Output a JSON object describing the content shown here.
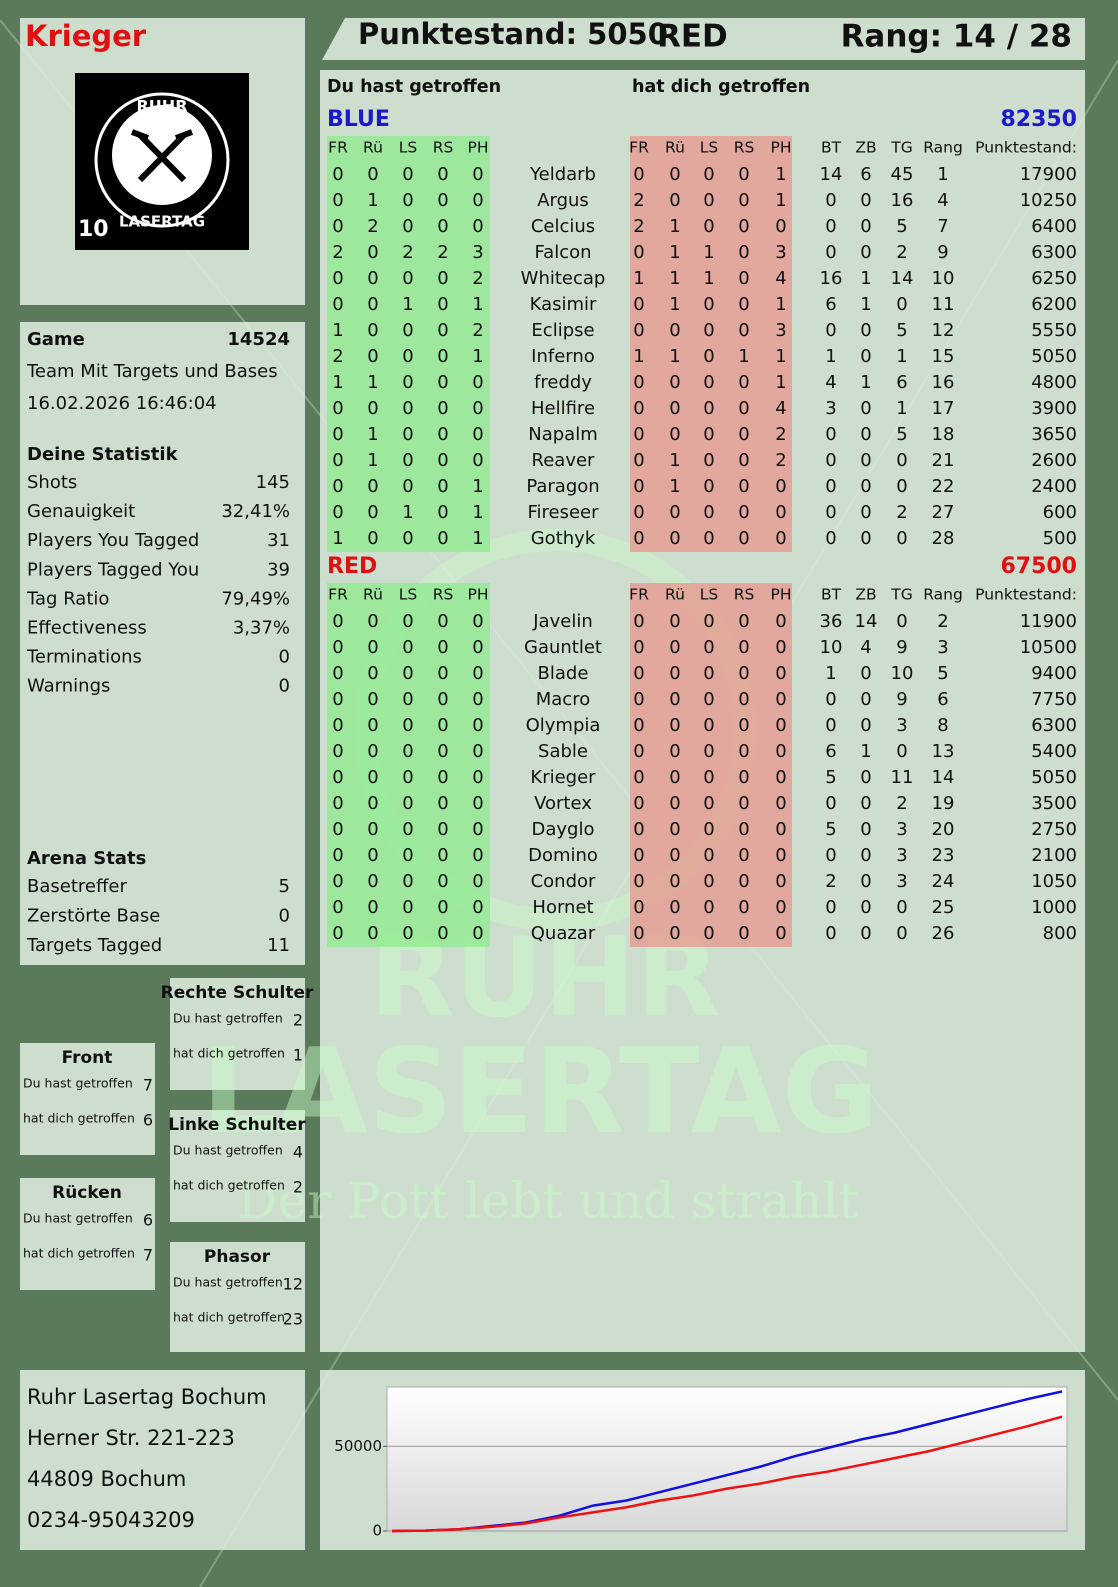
{
  "header": {
    "player": "Krieger",
    "score": "Punktestand: 5050",
    "team": "RED",
    "rank": "Rang: 14 / 28"
  },
  "logo": {
    "top": "RUHR",
    "bottom": "LASERTAG",
    "number": "10"
  },
  "game": {
    "label": "Game",
    "id": "14524",
    "mode": "Team Mit Targets und Bases",
    "date": "16.02.2026 16:46:04"
  },
  "statistics": {
    "title": "Deine Statistik",
    "rows": [
      [
        "Shots",
        "145"
      ],
      [
        "Genauigkeit",
        "32,41%"
      ],
      [
        "Players You Tagged",
        "31"
      ],
      [
        "Players Tagged You",
        "39"
      ],
      [
        "Tag Ratio",
        "79,49%"
      ],
      [
        "Effectiveness",
        "3,37%"
      ],
      [
        "Terminations",
        "0"
      ],
      [
        "Warnings",
        "0"
      ]
    ]
  },
  "arena": {
    "title": "Arena Stats",
    "rows": [
      [
        "Basetreffer",
        "5"
      ],
      [
        "Zerstörte Base",
        "0"
      ],
      [
        "Targets Tagged",
        "11"
      ]
    ]
  },
  "zones": [
    {
      "title": "Rechte Schulter",
      "rows": [
        [
          "Du hast getroffen",
          "2"
        ],
        [
          "hat dich getroffen",
          "1"
        ]
      ]
    },
    {
      "title": "Front",
      "rows": [
        [
          "Du hast getroffen",
          "7"
        ],
        [
          "hat dich getroffen",
          "6"
        ]
      ]
    },
    {
      "title": "Linke Schulter",
      "rows": [
        [
          "Du hast getroffen",
          "4"
        ],
        [
          "hat dich getroffen",
          "2"
        ]
      ]
    },
    {
      "title": "Rücken",
      "rows": [
        [
          "Du hast getroffen",
          "6"
        ],
        [
          "hat dich getroffen",
          "7"
        ]
      ]
    },
    {
      "title": "Phasor",
      "rows": [
        [
          "Du hast getroffen",
          "12"
        ],
        [
          "hat dich getroffen",
          "23"
        ]
      ]
    }
  ],
  "address": [
    "Ruhr Lasertag Bochum",
    "Herner Str. 221-223",
    "44809 Bochum",
    "0234-95043209"
  ],
  "watermark": {
    "line1": "RUHR",
    "line2": "LASERTAG",
    "slogan": "Der Pott lebt und strahlt"
  },
  "table": {
    "headings": [
      "Du hast getroffen",
      "hat dich getroffen"
    ],
    "teams": [
      {
        "name": "BLUE",
        "color": "#1a1acc",
        "total": "82350",
        "columns": [
          "FR",
          "Rü",
          "LS",
          "RS",
          "PH",
          "FR",
          "Rü",
          "LS",
          "RS",
          "PH",
          "BT",
          "ZB",
          "TG",
          "Rang",
          "Punktestand:"
        ],
        "rows": [
          {
            "name": "Yeldarb",
            "hit": [
              0,
              0,
              0,
              0,
              0
            ],
            "got": [
              0,
              0,
              0,
              0,
              1
            ],
            "stats": [
              14,
              6,
              45,
              1,
              17900
            ]
          },
          {
            "name": "Argus",
            "hit": [
              0,
              1,
              0,
              0,
              0
            ],
            "got": [
              2,
              0,
              0,
              0,
              1
            ],
            "stats": [
              0,
              0,
              16,
              4,
              10250
            ]
          },
          {
            "name": "Celcius",
            "hit": [
              0,
              2,
              0,
              0,
              0
            ],
            "got": [
              2,
              1,
              0,
              0,
              0
            ],
            "stats": [
              0,
              0,
              5,
              7,
              6400
            ]
          },
          {
            "name": "Falcon",
            "hit": [
              2,
              0,
              2,
              2,
              3
            ],
            "got": [
              0,
              1,
              1,
              0,
              3
            ],
            "stats": [
              0,
              0,
              2,
              9,
              6300
            ]
          },
          {
            "name": "Whitecap",
            "hit": [
              0,
              0,
              0,
              0,
              2
            ],
            "got": [
              1,
              1,
              1,
              0,
              4
            ],
            "stats": [
              16,
              1,
              14,
              10,
              6250
            ]
          },
          {
            "name": "Kasimir",
            "hit": [
              0,
              0,
              1,
              0,
              1
            ],
            "got": [
              0,
              1,
              0,
              0,
              1
            ],
            "stats": [
              6,
              1,
              0,
              11,
              6200
            ]
          },
          {
            "name": "Eclipse",
            "hit": [
              1,
              0,
              0,
              0,
              2
            ],
            "got": [
              0,
              0,
              0,
              0,
              3
            ],
            "stats": [
              0,
              0,
              5,
              12,
              5550
            ]
          },
          {
            "name": "Inferno",
            "hit": [
              2,
              0,
              0,
              0,
              1
            ],
            "got": [
              1,
              1,
              0,
              1,
              1
            ],
            "stats": [
              1,
              0,
              1,
              15,
              5050
            ]
          },
          {
            "name": "freddy",
            "hit": [
              1,
              1,
              0,
              0,
              0
            ],
            "got": [
              0,
              0,
              0,
              0,
              1
            ],
            "stats": [
              4,
              1,
              6,
              16,
              4800
            ]
          },
          {
            "name": "Hellfire",
            "hit": [
              0,
              0,
              0,
              0,
              0
            ],
            "got": [
              0,
              0,
              0,
              0,
              4
            ],
            "stats": [
              3,
              0,
              1,
              17,
              3900
            ]
          },
          {
            "name": "Napalm",
            "hit": [
              0,
              1,
              0,
              0,
              0
            ],
            "got": [
              0,
              0,
              0,
              0,
              2
            ],
            "stats": [
              0,
              0,
              5,
              18,
              3650
            ]
          },
          {
            "name": "Reaver",
            "hit": [
              0,
              1,
              0,
              0,
              0
            ],
            "got": [
              0,
              1,
              0,
              0,
              2
            ],
            "stats": [
              0,
              0,
              0,
              21,
              2600
            ]
          },
          {
            "name": "Paragon",
            "hit": [
              0,
              0,
              0,
              0,
              1
            ],
            "got": [
              0,
              1,
              0,
              0,
              0
            ],
            "stats": [
              0,
              0,
              0,
              22,
              2400
            ]
          },
          {
            "name": "Fireseer",
            "hit": [
              0,
              0,
              1,
              0,
              1
            ],
            "got": [
              0,
              0,
              0,
              0,
              0
            ],
            "stats": [
              0,
              0,
              2,
              27,
              600
            ]
          },
          {
            "name": "Gothyk",
            "hit": [
              1,
              0,
              0,
              0,
              1
            ],
            "got": [
              0,
              0,
              0,
              0,
              0
            ],
            "stats": [
              0,
              0,
              0,
              28,
              500
            ]
          }
        ]
      },
      {
        "name": "RED",
        "color": "#e01010",
        "total": "67500",
        "columns": [
          "FR",
          "Rü",
          "LS",
          "RS",
          "PH",
          "FR",
          "Rü",
          "LS",
          "RS",
          "PH",
          "BT",
          "ZB",
          "TG",
          "Rang",
          "Punktestand:"
        ],
        "rows": [
          {
            "name": "Javelin",
            "hit": [
              0,
              0,
              0,
              0,
              0
            ],
            "got": [
              0,
              0,
              0,
              0,
              0
            ],
            "stats": [
              36,
              14,
              0,
              2,
              11900
            ]
          },
          {
            "name": "Gauntlet",
            "hit": [
              0,
              0,
              0,
              0,
              0
            ],
            "got": [
              0,
              0,
              0,
              0,
              0
            ],
            "stats": [
              10,
              4,
              9,
              3,
              10500
            ]
          },
          {
            "name": "Blade",
            "hit": [
              0,
              0,
              0,
              0,
              0
            ],
            "got": [
              0,
              0,
              0,
              0,
              0
            ],
            "stats": [
              1,
              0,
              10,
              5,
              9400
            ]
          },
          {
            "name": "Macro",
            "hit": [
              0,
              0,
              0,
              0,
              0
            ],
            "got": [
              0,
              0,
              0,
              0,
              0
            ],
            "stats": [
              0,
              0,
              9,
              6,
              7750
            ]
          },
          {
            "name": "Olympia",
            "hit": [
              0,
              0,
              0,
              0,
              0
            ],
            "got": [
              0,
              0,
              0,
              0,
              0
            ],
            "stats": [
              0,
              0,
              3,
              8,
              6300
            ]
          },
          {
            "name": "Sable",
            "hit": [
              0,
              0,
              0,
              0,
              0
            ],
            "got": [
              0,
              0,
              0,
              0,
              0
            ],
            "stats": [
              6,
              1,
              0,
              13,
              5400
            ]
          },
          {
            "name": "Krieger",
            "hit": [
              0,
              0,
              0,
              0,
              0
            ],
            "got": [
              0,
              0,
              0,
              0,
              0
            ],
            "stats": [
              5,
              0,
              11,
              14,
              5050
            ]
          },
          {
            "name": "Vortex",
            "hit": [
              0,
              0,
              0,
              0,
              0
            ],
            "got": [
              0,
              0,
              0,
              0,
              0
            ],
            "stats": [
              0,
              0,
              2,
              19,
              3500
            ]
          },
          {
            "name": "Dayglo",
            "hit": [
              0,
              0,
              0,
              0,
              0
            ],
            "got": [
              0,
              0,
              0,
              0,
              0
            ],
            "stats": [
              5,
              0,
              3,
              20,
              2750
            ]
          },
          {
            "name": "Domino",
            "hit": [
              0,
              0,
              0,
              0,
              0
            ],
            "got": [
              0,
              0,
              0,
              0,
              0
            ],
            "stats": [
              0,
              0,
              3,
              23,
              2100
            ]
          },
          {
            "name": "Condor",
            "hit": [
              0,
              0,
              0,
              0,
              0
            ],
            "got": [
              0,
              0,
              0,
              0,
              0
            ],
            "stats": [
              2,
              0,
              3,
              24,
              1050
            ]
          },
          {
            "name": "Hornet",
            "hit": [
              0,
              0,
              0,
              0,
              0
            ],
            "got": [
              0,
              0,
              0,
              0,
              0
            ],
            "stats": [
              0,
              0,
              0,
              25,
              1000
            ]
          },
          {
            "name": "Quazar",
            "hit": [
              0,
              0,
              0,
              0,
              0
            ],
            "got": [
              0,
              0,
              0,
              0,
              0
            ],
            "stats": [
              0,
              0,
              0,
              26,
              800
            ]
          }
        ]
      }
    ]
  },
  "chart_data": {
    "type": "line",
    "ylim": [
      0,
      85000
    ],
    "yticks": [
      0,
      50000
    ],
    "grid": true,
    "series": [
      {
        "color": "#1010e0",
        "values": [
          0,
          200,
          1000,
          3000,
          5000,
          9000,
          15000,
          18000,
          23000,
          28000,
          33000,
          38000,
          44000,
          49000,
          54000,
          58000,
          63000,
          68000,
          73000,
          78000,
          82350
        ]
      },
      {
        "color": "#f01010",
        "values": [
          0,
          200,
          1000,
          2500,
          4500,
          8000,
          11000,
          14000,
          18000,
          21000,
          25000,
          28000,
          32000,
          35000,
          39000,
          43000,
          47000,
          52000,
          57000,
          62000,
          67500
        ]
      }
    ]
  }
}
